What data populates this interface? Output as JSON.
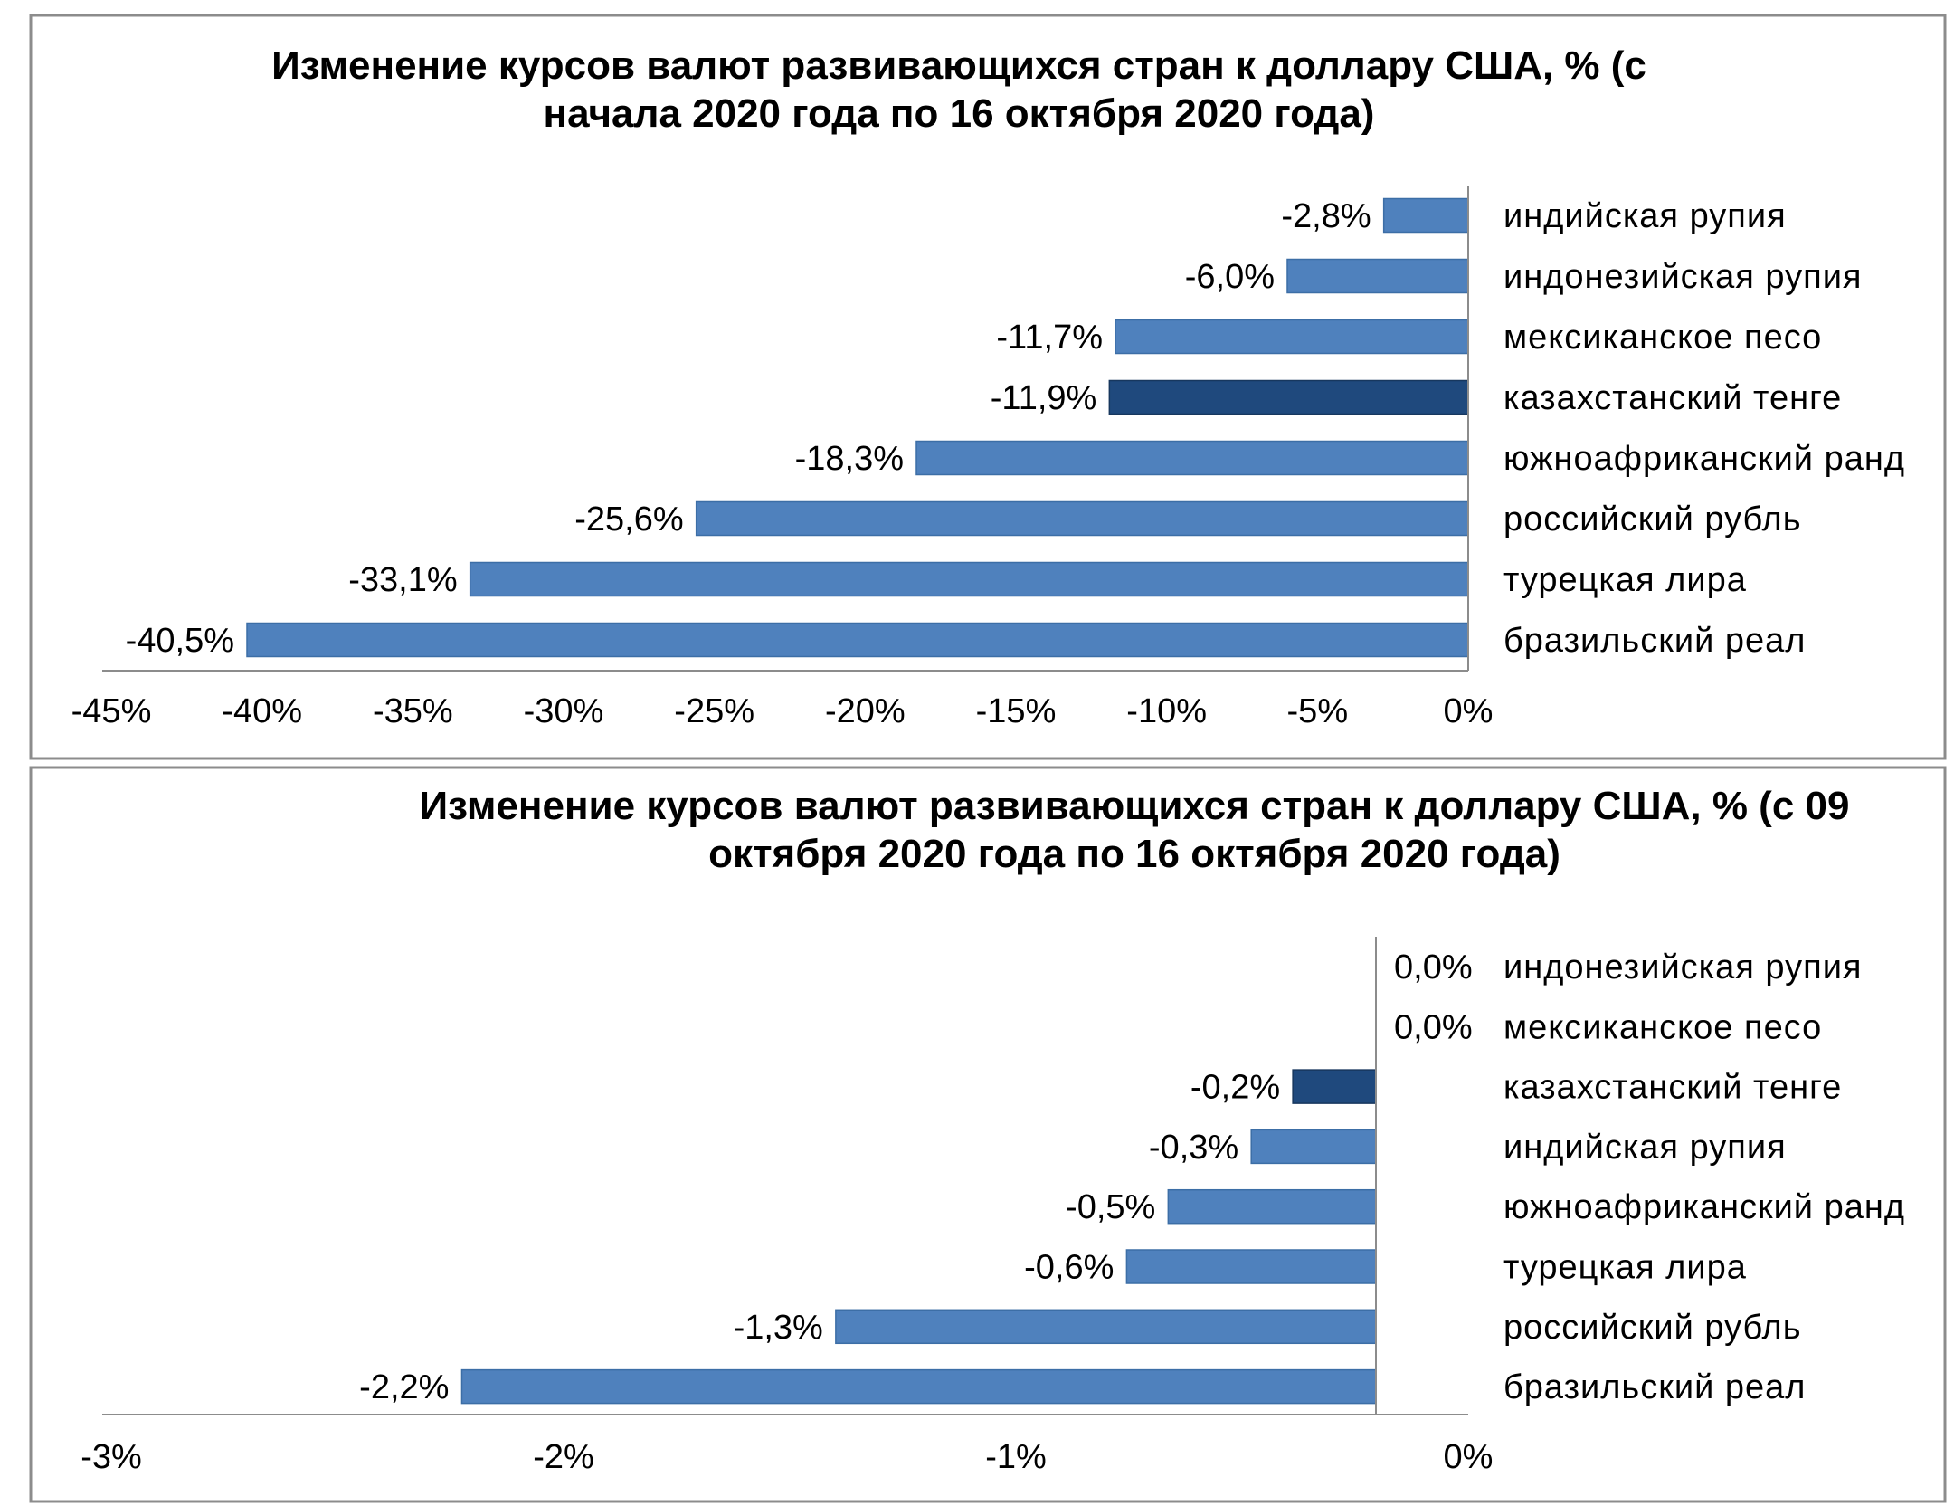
{
  "chart_data": [
    {
      "type": "bar",
      "orientation": "horizontal",
      "title_lines": [
        "Изменение курсов валют развивающихся стран  к доллару США,  % (с",
        "начала 2020 года по 16 октября 2020 года)"
      ],
      "categories": [
        "индийская рупия",
        "индонезийская  рупия",
        "мексиканское песо",
        "казахстанский тенге",
        "южноафриканский  ранд",
        "российский рубль",
        "турецкая  лира",
        "бразильский  реал"
      ],
      "values": [
        -2.8,
        -6.0,
        -11.7,
        -11.9,
        -18.3,
        -25.6,
        -33.1,
        -40.5
      ],
      "data_labels": [
        "-2,8%",
        "-6,0%",
        "-11,7%",
        "-11,9%",
        "-18,3%",
        "-25,6%",
        "-33,1%",
        "-40,5%"
      ],
      "highlight_category": "казахстанский тенге",
      "xlim": [
        -45,
        0
      ],
      "xticks": [
        "-45%",
        "-40%",
        "-35%",
        "-30%",
        "-25%",
        "-20%",
        "-15%",
        "-10%",
        "-5%",
        "0%"
      ],
      "grid": false,
      "legend": "none",
      "colors": {
        "bar": "#4f81bd",
        "highlight": "#1f497d"
      }
    },
    {
      "type": "bar",
      "orientation": "horizontal",
      "title_lines": [
        "Изменение курсов валют развивающихся стран  к доллару США,  % (с 09",
        "октября 2020 года по 16 октября 2020 года)"
      ],
      "categories": [
        "индонезийская  рупия",
        "мексиканское песо",
        "казахстанский тенге",
        "индийская рупия",
        "южноафриканский  ранд",
        "турецкая  лира",
        "российский рубль",
        "бразильский  реал"
      ],
      "values": [
        0.0,
        0.0,
        -0.2,
        -0.3,
        -0.5,
        -0.6,
        -1.3,
        -2.2
      ],
      "data_labels": [
        "0,0%",
        "0,0%",
        "-0,2%",
        "-0,3%",
        "-0,5%",
        "-0,6%",
        "-1,3%",
        "-2,2%"
      ],
      "highlight_category": "казахстанский тенге",
      "xlim": [
        -3,
        0
      ],
      "xticks": [
        "-3%",
        "-2%",
        "-1%",
        "0%"
      ],
      "grid": false,
      "legend": "none",
      "colors": {
        "bar": "#4f81bd",
        "highlight": "#1f497d"
      }
    }
  ]
}
